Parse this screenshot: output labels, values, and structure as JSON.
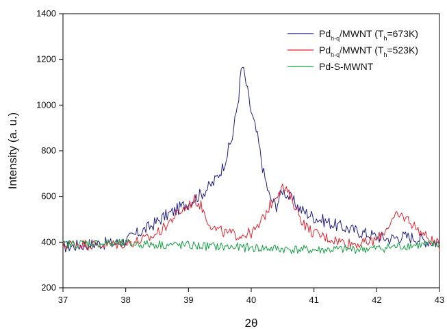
{
  "chart_data": {
    "type": "line",
    "title": "",
    "xlabel": "2θ",
    "ylabel": "Intensity (a. u.)",
    "xlim": [
      37,
      43
    ],
    "ylim": [
      200,
      1400
    ],
    "xticks": [
      37,
      38,
      39,
      40,
      41,
      42,
      43
    ],
    "yticks": [
      200,
      400,
      600,
      800,
      1000,
      1200,
      1400
    ],
    "grid": false,
    "legend_position": "top-right",
    "legend": [
      {
        "base": "Pd",
        "sub": "h-q",
        "mid": "/MWNT (T",
        "sub2": "h",
        "tail": "=673K)"
      },
      {
        "base": "Pd",
        "sub": "h-q",
        "mid": "/MWNT (T",
        "sub2": "h",
        "tail": "=523K)"
      },
      {
        "base": "Pd-S-MWNT",
        "sub": "",
        "mid": "",
        "sub2": "",
        "tail": ""
      }
    ],
    "series": [
      {
        "name": "Pdh-q/MWNT (Th=673K)",
        "color": "#1c1c8c",
        "points": [
          [
            37.0,
            380
          ],
          [
            37.2,
            385
          ],
          [
            37.4,
            390
          ],
          [
            37.6,
            395
          ],
          [
            37.8,
            392
          ],
          [
            38.0,
            405
          ],
          [
            38.2,
            440
          ],
          [
            38.4,
            470
          ],
          [
            38.6,
            510
          ],
          [
            38.8,
            540
          ],
          [
            39.0,
            575
          ],
          [
            39.2,
            610
          ],
          [
            39.4,
            660
          ],
          [
            39.55,
            730
          ],
          [
            39.7,
            860
          ],
          [
            39.8,
            1040
          ],
          [
            39.85,
            1180
          ],
          [
            39.9,
            1120
          ],
          [
            40.0,
            970
          ],
          [
            40.1,
            860
          ],
          [
            40.2,
            700
          ],
          [
            40.3,
            590
          ],
          [
            40.4,
            560
          ],
          [
            40.5,
            630
          ],
          [
            40.6,
            600
          ],
          [
            40.8,
            540
          ],
          [
            41.0,
            510
          ],
          [
            41.2,
            490
          ],
          [
            41.4,
            470
          ],
          [
            41.6,
            455
          ],
          [
            41.8,
            440
          ],
          [
            42.0,
            425
          ],
          [
            42.2,
            415
          ],
          [
            42.4,
            425
          ],
          [
            42.6,
            420
          ],
          [
            42.8,
            405
          ],
          [
            43.0,
            395
          ]
        ]
      },
      {
        "name": "Pdh-q/MWNT (Th=523K)",
        "color": "#e8202a",
        "points": [
          [
            37.0,
            385
          ],
          [
            37.2,
            395
          ],
          [
            37.4,
            390
          ],
          [
            37.6,
            388
          ],
          [
            37.8,
            390
          ],
          [
            38.0,
            395
          ],
          [
            38.2,
            405
          ],
          [
            38.4,
            420
          ],
          [
            38.6,
            460
          ],
          [
            38.8,
            520
          ],
          [
            39.0,
            560
          ],
          [
            39.1,
            585
          ],
          [
            39.2,
            560
          ],
          [
            39.3,
            500
          ],
          [
            39.4,
            460
          ],
          [
            39.6,
            440
          ],
          [
            39.8,
            430
          ],
          [
            40.0,
            440
          ],
          [
            40.1,
            460
          ],
          [
            40.2,
            510
          ],
          [
            40.3,
            560
          ],
          [
            40.4,
            610
          ],
          [
            40.5,
            640
          ],
          [
            40.6,
            610
          ],
          [
            40.7,
            560
          ],
          [
            40.8,
            500
          ],
          [
            40.9,
            460
          ],
          [
            41.0,
            440
          ],
          [
            41.2,
            420
          ],
          [
            41.4,
            405
          ],
          [
            41.6,
            395
          ],
          [
            41.8,
            395
          ],
          [
            42.0,
            410
          ],
          [
            42.1,
            440
          ],
          [
            42.2,
            480
          ],
          [
            42.3,
            510
          ],
          [
            42.4,
            515
          ],
          [
            42.5,
            500
          ],
          [
            42.6,
            470
          ],
          [
            42.8,
            420
          ],
          [
            43.0,
            385
          ]
        ]
      },
      {
        "name": "Pd-S-MWNT",
        "color": "#10a040",
        "points": [
          [
            37.0,
            390
          ],
          [
            37.5,
            395
          ],
          [
            38.0,
            392
          ],
          [
            38.5,
            390
          ],
          [
            39.0,
            385
          ],
          [
            39.5,
            380
          ],
          [
            40.0,
            375
          ],
          [
            40.5,
            370
          ],
          [
            41.0,
            365
          ],
          [
            41.5,
            368
          ],
          [
            42.0,
            372
          ],
          [
            42.5,
            385
          ],
          [
            43.0,
            390
          ]
        ]
      }
    ]
  }
}
